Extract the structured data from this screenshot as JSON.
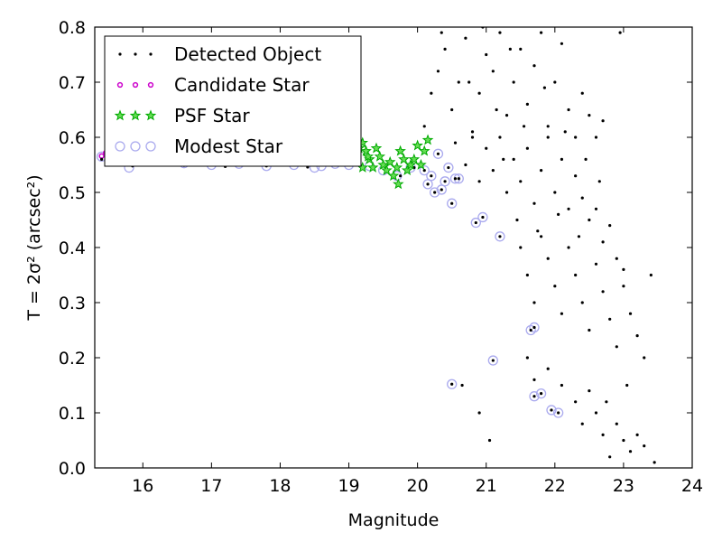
{
  "chart_data": {
    "type": "scatter",
    "xlabel": "Magnitude",
    "ylabel": "T = 2σ² (arcsec²)",
    "xlim": [
      15.3,
      24.0
    ],
    "ylim": [
      0.0,
      0.8
    ],
    "x_ticks": [
      16,
      17,
      18,
      19,
      20,
      21,
      22,
      23,
      24
    ],
    "y_ticks": [
      0.0,
      0.1,
      0.2,
      0.3,
      0.4,
      0.5,
      0.6,
      0.7,
      0.8
    ],
    "grid": false,
    "legend_position": "top-left",
    "series": [
      {
        "name": "Detected Object",
        "marker": "dot",
        "color": "#000000",
        "points": [
          [
            15.4,
            0.56
          ],
          [
            15.55,
            0.553
          ],
          [
            15.7,
            0.558
          ],
          [
            15.85,
            0.548
          ],
          [
            16.05,
            0.556
          ],
          [
            16.3,
            0.551
          ],
          [
            16.6,
            0.549
          ],
          [
            16.9,
            0.553
          ],
          [
            17.2,
            0.547
          ],
          [
            17.5,
            0.552
          ],
          [
            17.8,
            0.548
          ],
          [
            18.1,
            0.551
          ],
          [
            18.4,
            0.546
          ],
          [
            18.7,
            0.55
          ],
          [
            18.95,
            0.553
          ],
          [
            19.15,
            0.56
          ],
          [
            19.35,
            0.548
          ],
          [
            19.55,
            0.54
          ],
          [
            19.75,
            0.53
          ],
          [
            19.95,
            0.545
          ],
          [
            20.1,
            0.54
          ],
          [
            20.15,
            0.515
          ],
          [
            20.2,
            0.53
          ],
          [
            20.25,
            0.5
          ],
          [
            20.3,
            0.57
          ],
          [
            20.35,
            0.505
          ],
          [
            20.4,
            0.52
          ],
          [
            20.45,
            0.545
          ],
          [
            20.5,
            0.48
          ],
          [
            20.55,
            0.525
          ],
          [
            20.6,
            0.525
          ],
          [
            20.85,
            0.445
          ],
          [
            20.95,
            0.455
          ],
          [
            21.2,
            0.42
          ],
          [
            21.1,
            0.195
          ],
          [
            20.5,
            0.152
          ],
          [
            21.65,
            0.25
          ],
          [
            21.7,
            0.255
          ],
          [
            21.7,
            0.13
          ],
          [
            21.8,
            0.135
          ],
          [
            21.95,
            0.105
          ],
          [
            22.05,
            0.1
          ],
          [
            20.1,
            0.62
          ],
          [
            20.2,
            0.68
          ],
          [
            20.3,
            0.72
          ],
          [
            20.4,
            0.76
          ],
          [
            20.5,
            0.65
          ],
          [
            20.6,
            0.7
          ],
          [
            20.7,
            0.78
          ],
          [
            20.8,
            0.61
          ],
          [
            20.9,
            0.68
          ],
          [
            21.0,
            0.75
          ],
          [
            21.1,
            0.72
          ],
          [
            21.2,
            0.79
          ],
          [
            21.3,
            0.64
          ],
          [
            21.4,
            0.7
          ],
          [
            21.5,
            0.76
          ],
          [
            21.6,
            0.66
          ],
          [
            21.7,
            0.73
          ],
          [
            21.8,
            0.79
          ],
          [
            21.9,
            0.62
          ],
          [
            22.0,
            0.7
          ],
          [
            22.1,
            0.77
          ],
          [
            22.2,
            0.65
          ],
          [
            22.3,
            0.6
          ],
          [
            22.4,
            0.68
          ],
          [
            22.5,
            0.64
          ],
          [
            22.6,
            0.6
          ],
          [
            22.7,
            0.63
          ],
          [
            20.7,
            0.55
          ],
          [
            20.8,
            0.6
          ],
          [
            20.9,
            0.52
          ],
          [
            21.0,
            0.58
          ],
          [
            21.1,
            0.54
          ],
          [
            21.2,
            0.6
          ],
          [
            21.3,
            0.5
          ],
          [
            21.4,
            0.56
          ],
          [
            21.5,
            0.52
          ],
          [
            21.6,
            0.58
          ],
          [
            21.7,
            0.48
          ],
          [
            21.8,
            0.54
          ],
          [
            21.9,
            0.6
          ],
          [
            22.0,
            0.5
          ],
          [
            22.1,
            0.56
          ],
          [
            22.2,
            0.47
          ],
          [
            22.3,
            0.53
          ],
          [
            22.4,
            0.49
          ],
          [
            22.5,
            0.45
          ],
          [
            22.6,
            0.47
          ],
          [
            22.7,
            0.41
          ],
          [
            22.8,
            0.44
          ],
          [
            22.9,
            0.38
          ],
          [
            23.0,
            0.36
          ],
          [
            21.5,
            0.4
          ],
          [
            21.6,
            0.35
          ],
          [
            21.7,
            0.3
          ],
          [
            21.8,
            0.42
          ],
          [
            21.9,
            0.38
          ],
          [
            22.0,
            0.33
          ],
          [
            22.1,
            0.28
          ],
          [
            22.2,
            0.4
          ],
          [
            22.3,
            0.35
          ],
          [
            22.4,
            0.3
          ],
          [
            22.5,
            0.25
          ],
          [
            22.6,
            0.37
          ],
          [
            22.7,
            0.32
          ],
          [
            22.8,
            0.27
          ],
          [
            22.9,
            0.22
          ],
          [
            23.0,
            0.33
          ],
          [
            23.1,
            0.28
          ],
          [
            23.2,
            0.24
          ],
          [
            23.3,
            0.2
          ],
          [
            23.4,
            0.35
          ],
          [
            21.6,
            0.2
          ],
          [
            21.7,
            0.16
          ],
          [
            21.9,
            0.18
          ],
          [
            22.1,
            0.15
          ],
          [
            22.3,
            0.12
          ],
          [
            22.5,
            0.14
          ],
          [
            22.6,
            0.1
          ],
          [
            22.7,
            0.06
          ],
          [
            22.8,
            0.02
          ],
          [
            22.9,
            0.08
          ],
          [
            23.0,
            0.05
          ],
          [
            23.1,
            0.03
          ],
          [
            23.2,
            0.06
          ],
          [
            23.3,
            0.04
          ],
          [
            23.45,
            0.01
          ],
          [
            22.4,
            0.08
          ],
          [
            22.75,
            0.12
          ],
          [
            23.05,
            0.15
          ],
          [
            20.9,
            0.1
          ],
          [
            21.05,
            0.05
          ],
          [
            20.65,
            0.15
          ],
          [
            21.35,
            0.76
          ],
          [
            20.95,
            0.8
          ],
          [
            20.35,
            0.79
          ],
          [
            22.95,
            0.79
          ],
          [
            21.85,
            0.69
          ],
          [
            22.45,
            0.56
          ],
          [
            20.75,
            0.7
          ],
          [
            21.15,
            0.65
          ],
          [
            21.55,
            0.62
          ],
          [
            22.15,
            0.61
          ],
          [
            22.65,
            0.52
          ],
          [
            20.55,
            0.59
          ],
          [
            21.25,
            0.56
          ],
          [
            21.45,
            0.45
          ],
          [
            21.75,
            0.43
          ],
          [
            22.05,
            0.46
          ],
          [
            22.35,
            0.42
          ]
        ]
      },
      {
        "name": "Candidate Star",
        "marker": "ring-small",
        "color": "#cc00cc",
        "points": [
          [
            15.4,
            0.566
          ],
          [
            15.46,
            0.572
          ],
          [
            15.52,
            0.562
          ],
          [
            15.6,
            0.568
          ],
          [
            15.75,
            0.565
          ]
        ]
      },
      {
        "name": "PSF Star",
        "marker": "star",
        "color": "#00aa00",
        "points": [
          [
            19.1,
            0.56
          ],
          [
            19.15,
            0.58
          ],
          [
            19.2,
            0.59
          ],
          [
            19.25,
            0.575
          ],
          [
            19.3,
            0.56
          ],
          [
            19.35,
            0.545
          ],
          [
            19.4,
            0.58
          ],
          [
            19.45,
            0.565
          ],
          [
            19.5,
            0.55
          ],
          [
            19.55,
            0.54
          ],
          [
            19.6,
            0.555
          ],
          [
            19.65,
            0.53
          ],
          [
            19.7,
            0.545
          ],
          [
            19.72,
            0.515
          ],
          [
            19.75,
            0.575
          ],
          [
            19.8,
            0.56
          ],
          [
            19.85,
            0.54
          ],
          [
            19.9,
            0.55
          ],
          [
            19.95,
            0.56
          ],
          [
            20.0,
            0.585
          ],
          [
            20.05,
            0.55
          ],
          [
            20.1,
            0.575
          ],
          [
            20.15,
            0.595
          ],
          [
            19.2,
            0.545
          ],
          [
            19.28,
            0.565
          ]
        ]
      },
      {
        "name": "Modest Star",
        "marker": "ring-large",
        "color": "#aaaaee",
        "points": [
          [
            15.4,
            0.565
          ],
          [
            15.8,
            0.545
          ],
          [
            15.85,
            0.575
          ],
          [
            16.2,
            0.56
          ],
          [
            16.6,
            0.553
          ],
          [
            17.0,
            0.55
          ],
          [
            17.4,
            0.552
          ],
          [
            17.8,
            0.548
          ],
          [
            18.2,
            0.55
          ],
          [
            18.5,
            0.545
          ],
          [
            18.6,
            0.548
          ],
          [
            18.8,
            0.552
          ],
          [
            19.0,
            0.55
          ],
          [
            19.1,
            0.56
          ],
          [
            19.3,
            0.548
          ],
          [
            19.5,
            0.54
          ],
          [
            19.7,
            0.53
          ],
          [
            19.9,
            0.545
          ],
          [
            20.1,
            0.54
          ],
          [
            20.15,
            0.515
          ],
          [
            20.2,
            0.53
          ],
          [
            20.25,
            0.5
          ],
          [
            20.3,
            0.57
          ],
          [
            20.35,
            0.505
          ],
          [
            20.4,
            0.52
          ],
          [
            20.45,
            0.545
          ],
          [
            20.5,
            0.48
          ],
          [
            20.55,
            0.525
          ],
          [
            20.6,
            0.525
          ],
          [
            20.85,
            0.445
          ],
          [
            20.95,
            0.455
          ],
          [
            21.2,
            0.42
          ],
          [
            21.1,
            0.195
          ],
          [
            20.5,
            0.152
          ],
          [
            21.65,
            0.25
          ],
          [
            21.7,
            0.255
          ],
          [
            21.7,
            0.13
          ],
          [
            21.8,
            0.135
          ],
          [
            21.95,
            0.105
          ],
          [
            22.05,
            0.1
          ]
        ]
      }
    ]
  }
}
